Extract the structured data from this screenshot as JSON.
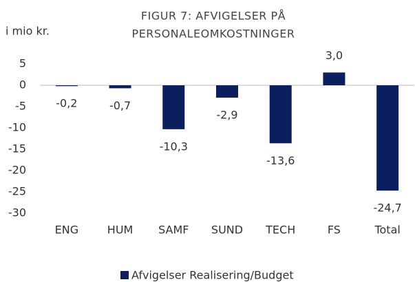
{
  "chart_data": {
    "type": "bar",
    "title": [
      "FIGUR 7: AFVIGELSER PÅ",
      "PERSONALEOMKOSTNINGER"
    ],
    "y_label": "i mio kr.",
    "categories": [
      "ENG",
      "HUM",
      "SAMF",
      "SUND",
      "TECH",
      "FS",
      "Total"
    ],
    "series": [
      {
        "name": "Afvigelser Realisering/Budget",
        "color": "#0b1f5e",
        "values": [
          -0.2,
          -0.7,
          -10.3,
          -2.9,
          -13.6,
          3.0,
          -24.7
        ],
        "value_labels": [
          "-0,2",
          "-0,7",
          "-10,3",
          "-2,9",
          "-13,6",
          "3,0",
          "-24,7"
        ]
      }
    ],
    "ylim": [
      -30,
      5
    ],
    "yticks": [
      5,
      0,
      -5,
      -10,
      -15,
      -20,
      -25,
      -30
    ],
    "grid": false,
    "legend": "bottom"
  }
}
